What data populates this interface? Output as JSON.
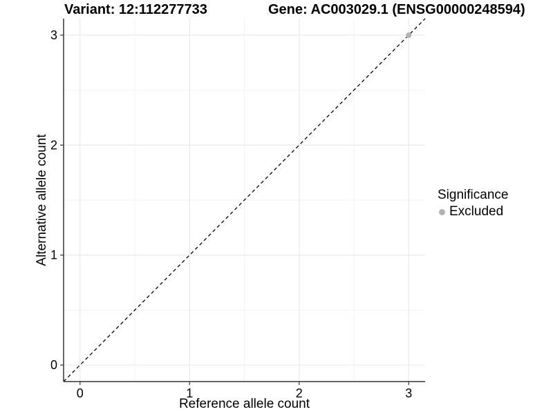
{
  "chart_data": {
    "type": "scatter",
    "titles": {
      "left": "Variant: 12:112277733",
      "right": "Gene: AC003029.1 (ENSG00000248594)"
    },
    "xlabel": "Reference allele count",
    "ylabel": "Alternative allele count",
    "xlim": [
      -0.15,
      3.15
    ],
    "ylim": [
      -0.15,
      3.15
    ],
    "x_ticks": [
      0,
      1,
      2,
      3
    ],
    "y_ticks": [
      0,
      1,
      2,
      3
    ],
    "x_minor_ticks": [
      0.5,
      1.5,
      2.5
    ],
    "y_minor_ticks": [
      0.5,
      1.5,
      2.5
    ],
    "grid": true,
    "reference_line": {
      "type": "identity",
      "style": "dashed",
      "x1": -0.15,
      "y1": -0.15,
      "x2": 3.15,
      "y2": 3.15
    },
    "series": [
      {
        "name": "Excluded",
        "marker": "circle",
        "color": "#b3b3b3",
        "points": [
          {
            "x": 3,
            "y": 3
          }
        ]
      }
    ],
    "legend": {
      "title": "Significance",
      "position": "right",
      "items": [
        {
          "label": "Excluded",
          "color": "#b3b3b3",
          "marker": "circle"
        }
      ]
    },
    "style": {
      "background": "#ffffff",
      "major_grid_color": "#e6e6e6",
      "minor_grid_color": "#f3f3f3",
      "axis_line_color": "#333333",
      "tick_color": "#333333",
      "tick_label_color": "#000000",
      "dash_line_color": "#000000"
    }
  }
}
